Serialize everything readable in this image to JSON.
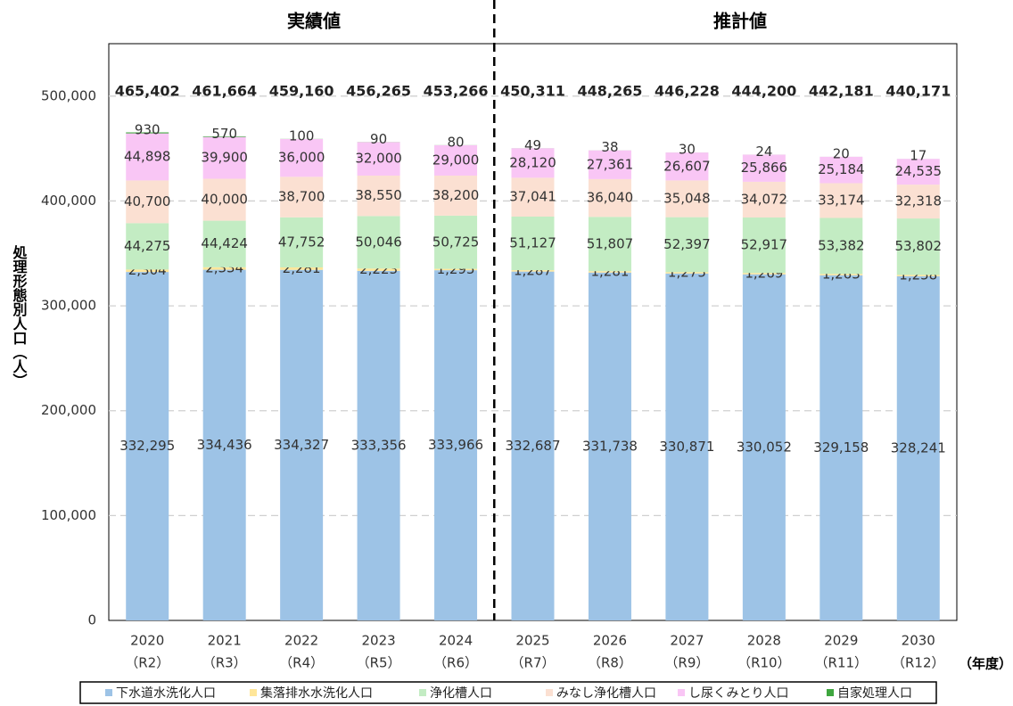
{
  "chart_data": {
    "type": "stacked_bar",
    "period_labels": [
      "実績値",
      "推計値"
    ],
    "y_label": "処理形態別人口（人）",
    "x_unit": "（年度）",
    "categories": [
      "2020",
      "2021",
      "2022",
      "2023",
      "2024",
      "2025",
      "2026",
      "2027",
      "2028",
      "2029",
      "2030"
    ],
    "category_sublabels": [
      "（R2）",
      "（R3）",
      "（R4）",
      "（R5）",
      "（R6）",
      "（R7）",
      "（R8）",
      "（R9）",
      "（R10）",
      "（R11）",
      "（R12）"
    ],
    "ylim": [
      0,
      550000
    ],
    "yticks": [
      0,
      {
        "value": 100000,
        "label": "100,000"
      },
      {
        "value": 200000,
        "label": "200,000"
      },
      {
        "value": 300000,
        "label": "300,000"
      },
      {
        "value": 400000,
        "label": "400,000"
      },
      {
        "value": 500000,
        "label": "500,000"
      }
    ],
    "grid": true,
    "series": [
      {
        "name": "下水道水洗化人口",
        "color": "#9dc3e6",
        "values": [
          332295,
          334436,
          334327,
          333356,
          333966,
          332687,
          331738,
          330871,
          330052,
          329158,
          328241
        ],
        "value_labels": [
          "332,295",
          "334,436",
          "334,327",
          "333,356",
          "333,966",
          "332,687",
          "331,738",
          "330,871",
          "330,052",
          "329,158",
          "328,241"
        ]
      },
      {
        "name": "集落排水水洗化人口",
        "color": "#ffe699",
        "values": [
          2304,
          2334,
          2281,
          2223,
          1295,
          1287,
          1281,
          1275,
          1269,
          1263,
          1258
        ],
        "value_labels": [
          "2,304",
          "2,334",
          "2,281",
          "2,223",
          "1,295",
          "1,287",
          "1,281",
          "1,275",
          "1,269",
          "1,263",
          "1,258"
        ]
      },
      {
        "name": "浄化槽人口",
        "color": "#c3ecc3",
        "values": [
          44275,
          44424,
          47752,
          50046,
          50725,
          51127,
          51807,
          52397,
          52917,
          53382,
          53802
        ],
        "value_labels": [
          "44,275",
          "44,424",
          "47,752",
          "50,046",
          "50,725",
          "51,127",
          "51,807",
          "52,397",
          "52,917",
          "53,382",
          "53,802"
        ]
      },
      {
        "name": "みなし浄化槽人口",
        "color": "#fbe0d2",
        "values": [
          40700,
          40000,
          38700,
          38550,
          38200,
          37041,
          36040,
          35048,
          34072,
          33174,
          32318
        ],
        "value_labels": [
          "40,700",
          "40,000",
          "38,700",
          "38,550",
          "38,200",
          "37,041",
          "36,040",
          "35,048",
          "34,072",
          "33,174",
          "32,318"
        ]
      },
      {
        "name": "し尿くみとり人口",
        "color": "#f9c6f5",
        "values": [
          44898,
          39900,
          36000,
          32000,
          29000,
          28120,
          27361,
          26607,
          25866,
          25184,
          24535
        ],
        "value_labels": [
          "44,898",
          "39,900",
          "36,000",
          "32,000",
          "29,000",
          "28,120",
          "27,361",
          "26,607",
          "25,866",
          "25,184",
          "24,535"
        ]
      },
      {
        "name": "自家処理人口",
        "color": "#3fa63f",
        "values": [
          930,
          570,
          100,
          90,
          80,
          49,
          38,
          30,
          24,
          20,
          17
        ]
      }
    ],
    "totals": [
      465402,
      461664,
      459160,
      456265,
      453266,
      450311,
      448265,
      446228,
      444200,
      442181,
      440171
    ],
    "total_labels": [
      "465,402",
      "461,664",
      "459,160",
      "456,265",
      "453,266",
      "450,311",
      "448,265",
      "446,228",
      "444,200",
      "442,181",
      "440,171"
    ]
  }
}
